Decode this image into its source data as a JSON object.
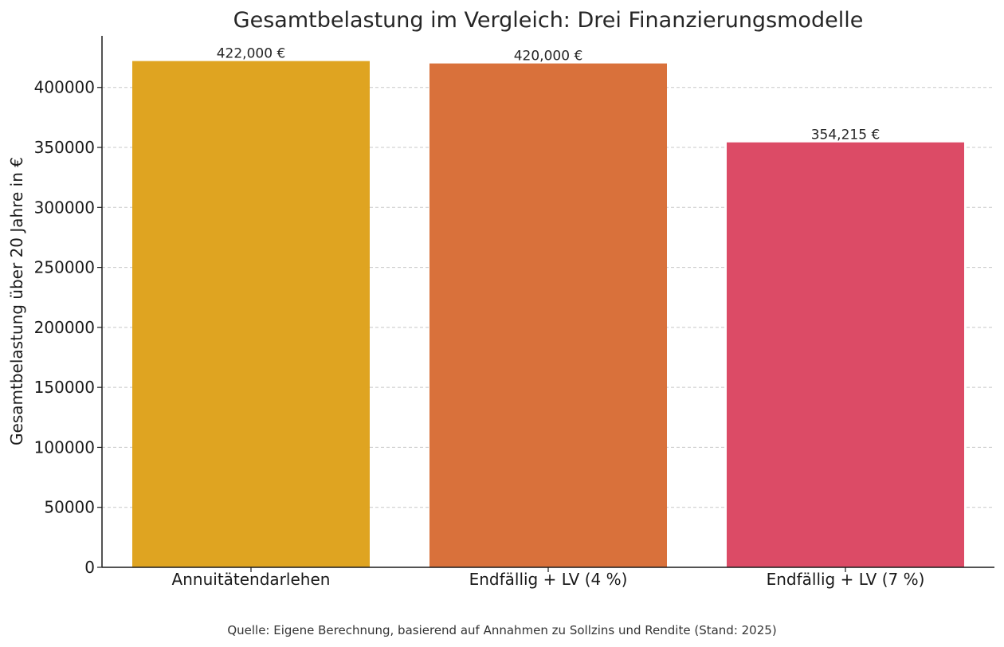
{
  "chart_data": {
    "type": "bar",
    "title": "Gesamtbelastung im Vergleich: Drei Finanzierungsmodelle",
    "xlabel": "",
    "ylabel": "Gesamtbelastung über 20 Jahre in €",
    "categories": [
      "Annuitätendarlehen",
      "Endfällig + LV (4 %)",
      "Endfällig + LV (7 %)"
    ],
    "values": [
      422000,
      420000,
      354215
    ],
    "value_labels": [
      "422,000 €",
      "420,000 €",
      "354,215 €"
    ],
    "colors": [
      "#DFA421",
      "#D9713B",
      "#DC4B66"
    ],
    "ylim": [
      0,
      443000
    ],
    "yticks": [
      0,
      50000,
      100000,
      150000,
      200000,
      250000,
      300000,
      350000,
      400000
    ],
    "ytick_labels": [
      "0",
      "50000",
      "100000",
      "150000",
      "200000",
      "250000",
      "300000",
      "350000",
      "400000"
    ],
    "grid": true,
    "legend": "none"
  },
  "footer": {
    "source_note": "Quelle: Eigene Berechnung, basierend auf Annahmen zu Sollzins und Rendite (Stand: 2025)"
  }
}
